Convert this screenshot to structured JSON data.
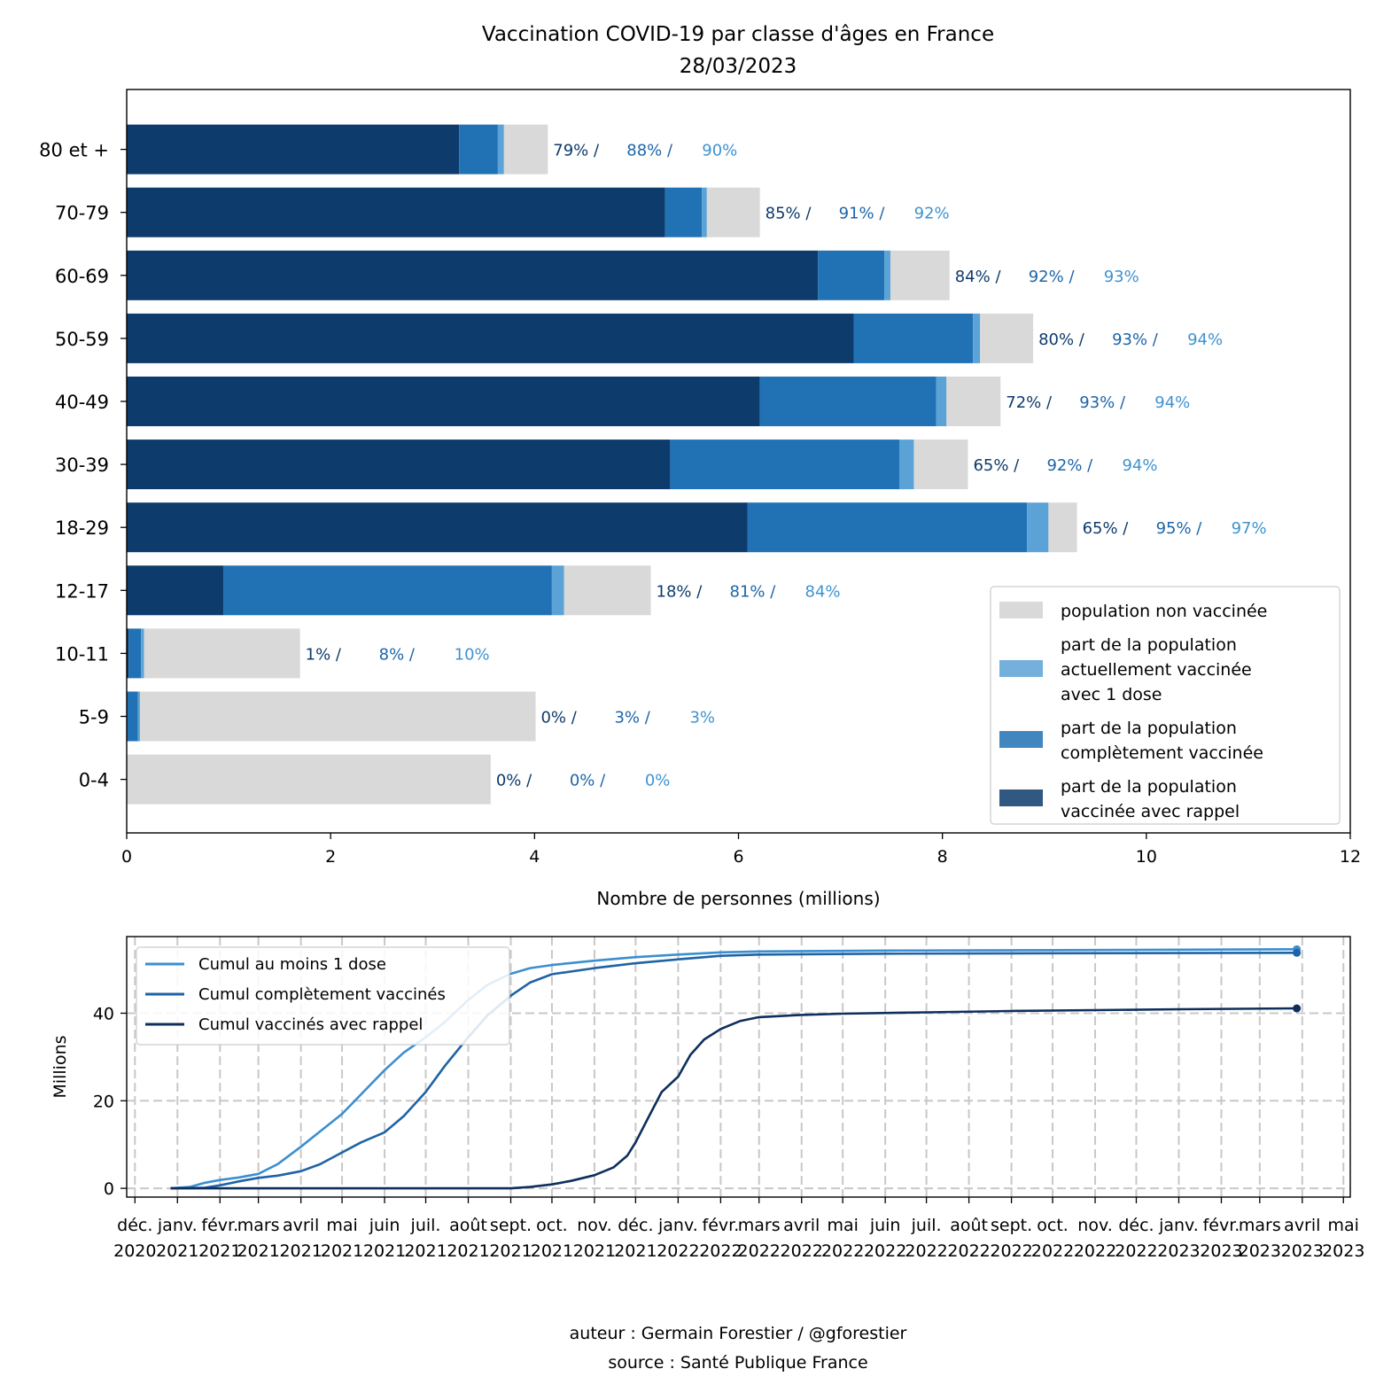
{
  "title": "Vaccination COVID-19 par classe d'âges en France",
  "date": "28/03/2023",
  "footer": {
    "author": "auteur : Germain Forestier / @gforestier",
    "source": "source : Santé Publique France"
  },
  "colors": {
    "unvaccinated": "#d9d9d9",
    "one_dose": "#5ba3d6",
    "complete": "#2171b5",
    "booster": "#0d3b6b",
    "pct_booster": "#0d3b6b",
    "pct_complete": "#1d65a8",
    "pct_one_dose": "#3f93d0",
    "line_one_dose": "#3b8fd0",
    "line_complete": "#1f63a5",
    "line_booster": "#0e2f5c"
  },
  "chart_data": [
    {
      "type": "bar",
      "orientation": "horizontal",
      "stacked": true,
      "xlabel": "Nombre de personnes (millions)",
      "xlim": [
        0,
        12
      ],
      "xticks": [
        0,
        2,
        4,
        6,
        8,
        10,
        12
      ],
      "categories": [
        "80 et +",
        "70-79",
        "60-69",
        "50-59",
        "40-49",
        "30-39",
        "18-29",
        "12-17",
        "10-11",
        "5-9",
        "0-4"
      ],
      "series": [
        {
          "name": "part de la population vaccinée avec rappel",
          "key": "booster",
          "values": [
            3.26,
            5.28,
            6.78,
            7.13,
            6.21,
            5.33,
            6.09,
            0.95,
            0.02,
            0.0,
            0.0
          ]
        },
        {
          "name": "part de la population complètement vaccinée",
          "key": "complete",
          "values": [
            0.38,
            0.36,
            0.65,
            1.17,
            1.73,
            2.25,
            2.74,
            3.22,
            0.12,
            0.11,
            0.0
          ]
        },
        {
          "name": "part de la population actuellement vaccinée avec 1 dose",
          "key": "one_dose",
          "values": [
            0.06,
            0.05,
            0.06,
            0.07,
            0.1,
            0.14,
            0.21,
            0.12,
            0.03,
            0.02,
            0.0
          ]
        },
        {
          "name": "population non vaccinée",
          "key": "unvaccinated",
          "values": [
            0.43,
            0.52,
            0.58,
            0.52,
            0.53,
            0.53,
            0.28,
            0.85,
            1.53,
            3.88,
            3.57
          ]
        }
      ],
      "labels": [
        [
          "79% /",
          "88% /",
          "90%"
        ],
        [
          "85% /",
          "91% /",
          "92%"
        ],
        [
          "84% /",
          "92% /",
          "93%"
        ],
        [
          "80% /",
          "93% /",
          "94%"
        ],
        [
          "72% /",
          "93% /",
          "94%"
        ],
        [
          "65% /",
          "92% /",
          "94%"
        ],
        [
          "65% /",
          "95% /",
          "97%"
        ],
        [
          "18% /",
          "81% /",
          "84%"
        ],
        [
          "1% /",
          "8% /",
          "10%"
        ],
        [
          "0% /",
          "3% /",
          "3%"
        ],
        [
          "0% /",
          "0% /",
          "0%"
        ]
      ],
      "legend": {
        "position": "lower right",
        "entries": [
          {
            "key": "unvaccinated",
            "lines": [
              "population non vaccinée"
            ]
          },
          {
            "key": "one_dose",
            "lines": [
              "part de la population",
              "actuellement vaccinée",
              "avec 1 dose"
            ]
          },
          {
            "key": "complete",
            "lines": [
              "part de la population",
              "complètement vaccinée"
            ]
          },
          {
            "key": "booster",
            "lines": [
              "part de la population",
              "vaccinée avec rappel"
            ]
          }
        ]
      }
    },
    {
      "type": "line",
      "ylabel": "Millions",
      "ylim": [
        -2,
        57.5
      ],
      "yticks": [
        0,
        20,
        40
      ],
      "grid": true,
      "legend": "upper left",
      "x_range": [
        "2020-11-25",
        "2023-05-06"
      ],
      "xticks": [
        {
          "date": "2020-12-01",
          "label": [
            "déc.",
            "2020"
          ]
        },
        {
          "date": "2021-01-01",
          "label": [
            "janv.",
            "2021"
          ]
        },
        {
          "date": "2021-02-01",
          "label": [
            "févr.",
            "2021"
          ]
        },
        {
          "date": "2021-03-01",
          "label": [
            "mars",
            "2021"
          ]
        },
        {
          "date": "2021-04-01",
          "label": [
            "avril",
            "2021"
          ]
        },
        {
          "date": "2021-05-01",
          "label": [
            "mai",
            "2021"
          ]
        },
        {
          "date": "2021-06-01",
          "label": [
            "juin",
            "2021"
          ]
        },
        {
          "date": "2021-07-01",
          "label": [
            "juil.",
            "2021"
          ]
        },
        {
          "date": "2021-08-01",
          "label": [
            "août",
            "2021"
          ]
        },
        {
          "date": "2021-09-01",
          "label": [
            "sept.",
            "2021"
          ]
        },
        {
          "date": "2021-10-01",
          "label": [
            "oct.",
            "2021"
          ]
        },
        {
          "date": "2021-11-01",
          "label": [
            "nov.",
            "2021"
          ]
        },
        {
          "date": "2021-12-01",
          "label": [
            "déc.",
            "2021"
          ]
        },
        {
          "date": "2022-01-01",
          "label": [
            "janv.",
            "2022"
          ]
        },
        {
          "date": "2022-02-01",
          "label": [
            "févr.",
            "2022"
          ]
        },
        {
          "date": "2022-03-01",
          "label": [
            "mars",
            "2022"
          ]
        },
        {
          "date": "2022-04-01",
          "label": [
            "avril",
            "2022"
          ]
        },
        {
          "date": "2022-05-01",
          "label": [
            "mai",
            "2022"
          ]
        },
        {
          "date": "2022-06-01",
          "label": [
            "juin",
            "2022"
          ]
        },
        {
          "date": "2022-07-01",
          "label": [
            "juil.",
            "2022"
          ]
        },
        {
          "date": "2022-08-01",
          "label": [
            "août",
            "2022"
          ]
        },
        {
          "date": "2022-09-01",
          "label": [
            "sept.",
            "2022"
          ]
        },
        {
          "date": "2022-10-01",
          "label": [
            "oct.",
            "2022"
          ]
        },
        {
          "date": "2022-11-01",
          "label": [
            "nov.",
            "2022"
          ]
        },
        {
          "date": "2022-12-01",
          "label": [
            "déc.",
            "2022"
          ]
        },
        {
          "date": "2023-01-01",
          "label": [
            "janv.",
            "2023"
          ]
        },
        {
          "date": "2023-02-01",
          "label": [
            "févr.",
            "2023"
          ]
        },
        {
          "date": "2023-03-01",
          "label": [
            "mars",
            "2023"
          ]
        },
        {
          "date": "2023-04-01",
          "label": [
            "avril",
            "2023"
          ]
        },
        {
          "date": "2023-05-01",
          "label": [
            "mai",
            "2023"
          ]
        }
      ],
      "series": [
        {
          "name": "Cumul au moins 1 dose",
          "key": "line_one_dose",
          "points": [
            [
              "2020-12-27",
              0
            ],
            [
              "2021-01-10",
              0.3
            ],
            [
              "2021-01-20",
              1.2
            ],
            [
              "2021-02-01",
              1.9
            ],
            [
              "2021-02-15",
              2.5
            ],
            [
              "2021-03-01",
              3.3
            ],
            [
              "2021-03-15",
              5.5
            ],
            [
              "2021-04-01",
              9.5
            ],
            [
              "2021-04-15",
              13
            ],
            [
              "2021-05-01",
              17
            ],
            [
              "2021-05-15",
              21.5
            ],
            [
              "2021-06-01",
              27
            ],
            [
              "2021-06-15",
              31
            ],
            [
              "2021-07-01",
              34.5
            ],
            [
              "2021-07-15",
              38
            ],
            [
              "2021-08-01",
              43
            ],
            [
              "2021-08-15",
              46.5
            ],
            [
              "2021-09-01",
              49
            ],
            [
              "2021-09-15",
              50.3
            ],
            [
              "2021-10-01",
              51.0
            ],
            [
              "2021-11-01",
              52.0
            ],
            [
              "2021-12-01",
              52.8
            ],
            [
              "2022-01-01",
              53.4
            ],
            [
              "2022-02-01",
              53.9
            ],
            [
              "2022-03-01",
              54.1
            ],
            [
              "2022-06-01",
              54.3
            ],
            [
              "2022-10-01",
              54.4
            ],
            [
              "2023-03-28",
              54.6
            ]
          ]
        },
        {
          "name": "Cumul complètement vaccinés",
          "key": "line_complete",
          "points": [
            [
              "2020-12-27",
              0
            ],
            [
              "2021-01-20",
              0.1
            ],
            [
              "2021-02-01",
              0.7
            ],
            [
              "2021-02-15",
              1.6
            ],
            [
              "2021-03-01",
              2.4
            ],
            [
              "2021-03-15",
              2.9
            ],
            [
              "2021-04-01",
              3.9
            ],
            [
              "2021-04-15",
              5.5
            ],
            [
              "2021-05-01",
              8.2
            ],
            [
              "2021-05-15",
              10.5
            ],
            [
              "2021-06-01",
              12.8
            ],
            [
              "2021-06-15",
              16.5
            ],
            [
              "2021-07-01",
              22
            ],
            [
              "2021-07-15",
              28
            ],
            [
              "2021-08-01",
              34.5
            ],
            [
              "2021-08-15",
              39.5
            ],
            [
              "2021-09-01",
              44
            ],
            [
              "2021-09-15",
              47
            ],
            [
              "2021-10-01",
              48.9
            ],
            [
              "2021-11-01",
              50.3
            ],
            [
              "2021-12-01",
              51.4
            ],
            [
              "2022-01-01",
              52.3
            ],
            [
              "2022-02-01",
              53.1
            ],
            [
              "2022-03-01",
              53.4
            ],
            [
              "2022-06-01",
              53.6
            ],
            [
              "2022-10-01",
              53.7
            ],
            [
              "2023-03-28",
              53.8
            ]
          ]
        },
        {
          "name": "Cumul vaccinés avec rappel",
          "key": "line_booster",
          "points": [
            [
              "2020-12-27",
              0
            ],
            [
              "2021-09-01",
              0
            ],
            [
              "2021-09-15",
              0.3
            ],
            [
              "2021-10-01",
              0.9
            ],
            [
              "2021-10-15",
              1.7
            ],
            [
              "2021-11-01",
              3.0
            ],
            [
              "2021-11-15",
              4.8
            ],
            [
              "2021-11-25",
              7.5
            ],
            [
              "2021-12-01",
              10.5
            ],
            [
              "2021-12-10",
              16
            ],
            [
              "2021-12-20",
              22
            ],
            [
              "2022-01-01",
              25.5
            ],
            [
              "2022-01-10",
              30.5
            ],
            [
              "2022-01-20",
              34
            ],
            [
              "2022-02-01",
              36.4
            ],
            [
              "2022-02-15",
              38.2
            ],
            [
              "2022-03-01",
              39.1
            ],
            [
              "2022-04-01",
              39.6
            ],
            [
              "2022-05-01",
              39.9
            ],
            [
              "2022-07-01",
              40.2
            ],
            [
              "2022-09-01",
              40.5
            ],
            [
              "2022-11-01",
              40.7
            ],
            [
              "2023-01-01",
              40.9
            ],
            [
              "2023-03-28",
              41.1
            ]
          ]
        }
      ]
    }
  ]
}
